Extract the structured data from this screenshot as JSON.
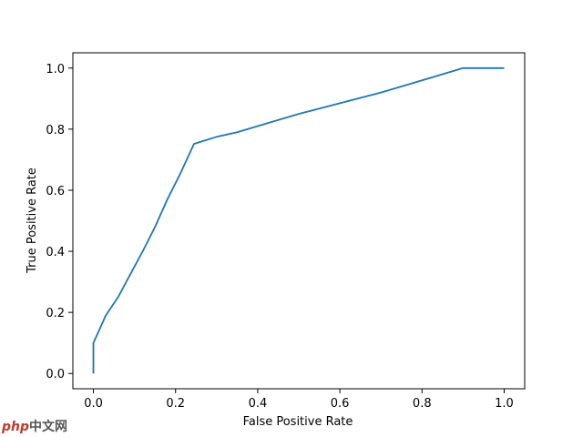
{
  "chart_data": {
    "type": "line",
    "xlabel": "False Positive Rate",
    "ylabel": "True Positive Rate",
    "xlim": [
      -0.05,
      1.05
    ],
    "ylim": [
      -0.05,
      1.05
    ],
    "xticks": [
      0.0,
      0.2,
      0.4,
      0.6,
      0.8,
      1.0
    ],
    "yticks": [
      0.0,
      0.2,
      0.4,
      0.6,
      0.8,
      1.0
    ],
    "tick_labels": [
      "0.0",
      "0.2",
      "0.4",
      "0.6",
      "0.8",
      "1.0"
    ],
    "grid": false,
    "series": [
      {
        "color": "#1f77b4",
        "x": [
          0.0,
          0.0,
          0.01,
          0.03,
          0.06,
          0.1,
          0.12,
          0.15,
          0.18,
          0.21,
          0.245,
          0.3,
          0.35,
          0.4,
          0.5,
          0.6,
          0.7,
          0.8,
          0.9,
          1.0
        ],
        "y": [
          0.0,
          0.1,
          0.13,
          0.19,
          0.25,
          0.35,
          0.4,
          0.48,
          0.57,
          0.65,
          0.752,
          0.775,
          0.79,
          0.81,
          0.85,
          0.885,
          0.92,
          0.96,
          1.0,
          1.0
        ]
      }
    ]
  },
  "watermark": {
    "logo": "php",
    "text": "中文网"
  }
}
